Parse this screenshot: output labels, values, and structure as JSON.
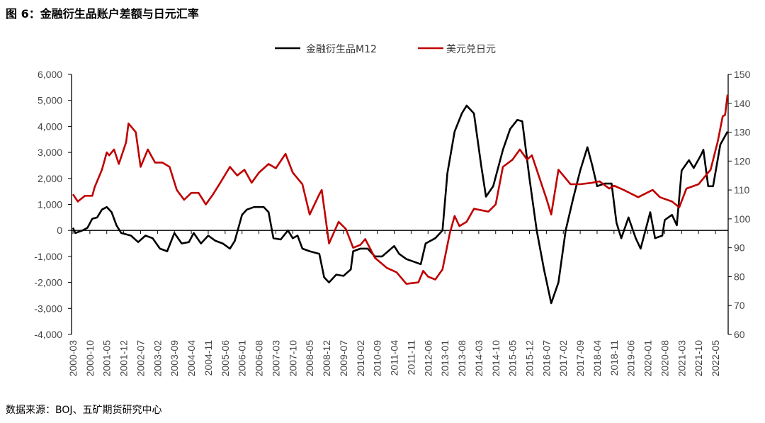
{
  "title": "图 6：金融衍生品账户差额与日元汇率",
  "source": "数据来源：BOJ、五矿期货研究中心",
  "chart_data": {
    "type": "line",
    "title": "图 6：金融衍生品账户差额与日元汇率",
    "legend_position": "top-center",
    "grid": false,
    "x_tick_labels": [
      "2000-03",
      "2000-10",
      "2001-05",
      "2001-12",
      "2002-07",
      "2003-02",
      "2003-09",
      "2004-04",
      "2004-11",
      "2005-06",
      "2006-01",
      "2006-08",
      "2007-03",
      "2007-10",
      "2008-05",
      "2008-12",
      "2009-07",
      "2010-02",
      "2010-09",
      "2011-04",
      "2011-11",
      "2012-06",
      "2013-01",
      "2013-08",
      "2014-03",
      "2014-10",
      "2015-05",
      "2015-12",
      "2016-07",
      "2017-02",
      "2017-09",
      "2018-04",
      "2018-11",
      "2019-06",
      "2020-01",
      "2020-08",
      "2021-03",
      "2021-10",
      "2022-05"
    ],
    "y_left": {
      "range": [
        -4000,
        6000
      ],
      "ticks": [
        "6,000",
        "5,000",
        "4,000",
        "3,000",
        "2,000",
        "1,000",
        "0",
        "-1,000",
        "-2,000",
        "-3,000",
        "-4,000"
      ]
    },
    "y_right": {
      "range": [
        60,
        150
      ],
      "ticks": [
        "150",
        "140",
        "130",
        "120",
        "110",
        "100",
        "90",
        "80",
        "70",
        "60"
      ]
    },
    "series": [
      {
        "name": "金融衍生品M12",
        "axis": "left",
        "color": "#000000",
        "points": [
          [
            "2000-03",
            100
          ],
          [
            "2000-04",
            -100
          ],
          [
            "2000-07",
            0
          ],
          [
            "2000-09",
            100
          ],
          [
            "2000-11",
            450
          ],
          [
            "2001-01",
            500
          ],
          [
            "2001-03",
            800
          ],
          [
            "2001-05",
            900
          ],
          [
            "2001-07",
            700
          ],
          [
            "2001-09",
            200
          ],
          [
            "2001-11",
            -100
          ],
          [
            "2002-03",
            -200
          ],
          [
            "2002-06",
            -450
          ],
          [
            "2002-09",
            -200
          ],
          [
            "2002-12",
            -300
          ],
          [
            "2003-03",
            -700
          ],
          [
            "2003-06",
            -800
          ],
          [
            "2003-09",
            -100
          ],
          [
            "2003-12",
            -500
          ],
          [
            "2004-03",
            -450
          ],
          [
            "2004-05",
            -100
          ],
          [
            "2004-08",
            -500
          ],
          [
            "2004-11",
            -200
          ],
          [
            "2005-02",
            -400
          ],
          [
            "2005-05",
            -500
          ],
          [
            "2005-08",
            -700
          ],
          [
            "2005-10",
            -400
          ],
          [
            "2006-01",
            600
          ],
          [
            "2006-03",
            800
          ],
          [
            "2006-06",
            900
          ],
          [
            "2006-10",
            900
          ],
          [
            "2006-12",
            700
          ],
          [
            "2007-02",
            -300
          ],
          [
            "2007-05",
            -350
          ],
          [
            "2007-08",
            0
          ],
          [
            "2007-10",
            -300
          ],
          [
            "2007-12",
            -200
          ],
          [
            "2008-02",
            -700
          ],
          [
            "2008-05",
            -800
          ],
          [
            "2008-09",
            -900
          ],
          [
            "2008-11",
            -1800
          ],
          [
            "2009-01",
            -2000
          ],
          [
            "2009-04",
            -1700
          ],
          [
            "2009-07",
            -1750
          ],
          [
            "2009-10",
            -1500
          ],
          [
            "2009-11",
            -800
          ],
          [
            "2010-02",
            -700
          ],
          [
            "2010-05",
            -700
          ],
          [
            "2010-08",
            -1000
          ],
          [
            "2010-11",
            -1000
          ],
          [
            "2011-04",
            -600
          ],
          [
            "2011-06",
            -900
          ],
          [
            "2011-09",
            -1100
          ],
          [
            "2011-12",
            -1200
          ],
          [
            "2012-03",
            -1300
          ],
          [
            "2012-05",
            -500
          ],
          [
            "2012-09",
            -300
          ],
          [
            "2012-12",
            0
          ],
          [
            "2013-02",
            2200
          ],
          [
            "2013-05",
            3800
          ],
          [
            "2013-08",
            4500
          ],
          [
            "2013-10",
            4800
          ],
          [
            "2014-01",
            4500
          ],
          [
            "2014-04",
            2500
          ],
          [
            "2014-06",
            1300
          ],
          [
            "2014-09",
            1700
          ],
          [
            "2015-01",
            3100
          ],
          [
            "2015-04",
            3900
          ],
          [
            "2015-07",
            4250
          ],
          [
            "2015-09",
            4200
          ],
          [
            "2015-12",
            2000
          ],
          [
            "2016-03",
            0
          ],
          [
            "2016-06",
            -1500
          ],
          [
            "2016-09",
            -2800
          ],
          [
            "2016-12",
            -2000
          ],
          [
            "2017-03",
            0
          ],
          [
            "2017-06",
            1200
          ],
          [
            "2017-09",
            2300
          ],
          [
            "2017-12",
            3200
          ],
          [
            "2018-02",
            2500
          ],
          [
            "2018-04",
            1700
          ],
          [
            "2018-07",
            1800
          ],
          [
            "2018-10",
            1800
          ],
          [
            "2018-12",
            300
          ],
          [
            "2019-02",
            -300
          ],
          [
            "2019-05",
            500
          ],
          [
            "2019-08",
            -300
          ],
          [
            "2019-10",
            -700
          ],
          [
            "2020-02",
            700
          ],
          [
            "2020-04",
            -300
          ],
          [
            "2020-07",
            -200
          ],
          [
            "2020-08",
            400
          ],
          [
            "2020-11",
            600
          ],
          [
            "2021-01",
            200
          ],
          [
            "2021-03",
            2300
          ],
          [
            "2021-06",
            2700
          ],
          [
            "2021-08",
            2400
          ],
          [
            "2021-11",
            2900
          ],
          [
            "2021-12",
            3100
          ],
          [
            "2022-02",
            1700
          ],
          [
            "2022-04",
            1700
          ],
          [
            "2022-07",
            3300
          ],
          [
            "2022-10",
            3800
          ]
        ]
      },
      {
        "name": "美元兑日元",
        "axis": "right",
        "color": "#c00000",
        "points": [
          [
            "2000-03",
            108.5
          ],
          [
            "2000-05",
            106
          ],
          [
            "2000-08",
            108
          ],
          [
            "2000-11",
            108
          ],
          [
            "2000-12",
            111
          ],
          [
            "2001-03",
            117
          ],
          [
            "2001-05",
            123
          ],
          [
            "2001-06",
            122
          ],
          [
            "2001-08",
            124
          ],
          [
            "2001-10",
            119
          ],
          [
            "2002-01",
            126.5
          ],
          [
            "2002-02",
            133
          ],
          [
            "2002-05",
            130
          ],
          [
            "2002-07",
            118
          ],
          [
            "2002-10",
            124
          ],
          [
            "2003-01",
            119.5
          ],
          [
            "2003-04",
            119.5
          ],
          [
            "2003-07",
            118
          ],
          [
            "2003-10",
            110
          ],
          [
            "2004-01",
            106.6
          ],
          [
            "2004-04",
            109
          ],
          [
            "2004-07",
            109
          ],
          [
            "2004-10",
            105
          ],
          [
            "2005-01",
            108.5
          ],
          [
            "2005-04",
            112.5
          ],
          [
            "2005-08",
            118
          ],
          [
            "2005-11",
            115
          ],
          [
            "2006-02",
            117
          ],
          [
            "2006-05",
            112.5
          ],
          [
            "2006-08",
            116
          ],
          [
            "2006-12",
            119
          ],
          [
            "2007-03",
            117.5
          ],
          [
            "2007-07",
            122.5
          ],
          [
            "2007-10",
            116
          ],
          [
            "2008-02",
            112
          ],
          [
            "2008-05",
            101.5
          ],
          [
            "2008-09",
            108.5
          ],
          [
            "2008-10",
            110
          ],
          [
            "2009-01",
            91.5
          ],
          [
            "2009-05",
            99
          ],
          [
            "2009-08",
            96.5
          ],
          [
            "2009-11",
            90
          ],
          [
            "2010-02",
            91
          ],
          [
            "2010-04",
            93
          ],
          [
            "2010-08",
            86.5
          ],
          [
            "2011-01",
            83
          ],
          [
            "2011-05",
            81.5
          ],
          [
            "2011-09",
            77.5
          ],
          [
            "2012-02",
            78
          ],
          [
            "2012-04",
            82
          ],
          [
            "2012-06",
            80
          ],
          [
            "2012-09",
            79
          ],
          [
            "2012-12",
            82.5
          ],
          [
            "2013-03",
            95
          ],
          [
            "2013-05",
            101
          ],
          [
            "2013-07",
            97.5
          ],
          [
            "2013-10",
            99
          ],
          [
            "2014-01",
            103.5
          ],
          [
            "2014-07",
            102.5
          ],
          [
            "2014-10",
            105
          ],
          [
            "2015-01",
            118
          ],
          [
            "2015-05",
            120.5
          ],
          [
            "2015-08",
            124
          ],
          [
            "2015-11",
            120.5
          ],
          [
            "2016-01",
            122
          ],
          [
            "2016-07",
            107
          ],
          [
            "2016-09",
            101.5
          ],
          [
            "2016-12",
            117
          ],
          [
            "2017-05",
            112
          ],
          [
            "2017-09",
            112
          ],
          [
            "2018-02",
            112.5
          ],
          [
            "2018-05",
            113
          ],
          [
            "2018-09",
            110.5
          ],
          [
            "2018-11",
            111.5
          ],
          [
            "2019-03",
            110
          ],
          [
            "2019-09",
            107.5
          ],
          [
            "2020-03",
            110
          ],
          [
            "2020-06",
            107.5
          ],
          [
            "2020-11",
            106
          ],
          [
            "2021-02",
            104
          ],
          [
            "2021-05",
            110.5
          ],
          [
            "2021-10",
            112
          ],
          [
            "2022-02",
            116
          ],
          [
            "2022-03",
            117
          ],
          [
            "2022-06",
            127
          ],
          [
            "2022-08",
            135.5
          ],
          [
            "2022-09",
            136
          ],
          [
            "2022-10",
            143
          ]
        ]
      }
    ]
  }
}
